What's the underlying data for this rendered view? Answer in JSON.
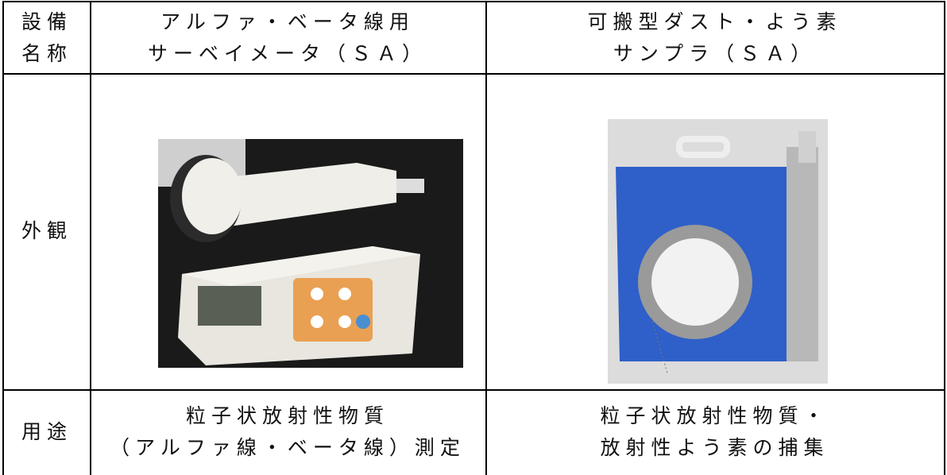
{
  "table": {
    "rows": [
      {
        "label": [
          "設備",
          "名称"
        ],
        "cells": [
          [
            "アルファ・ベータ線用",
            "サーベイメータ（ＳＡ）"
          ],
          [
            "可搬型ダスト・よう素",
            "サンプラ（ＳＡ）"
          ]
        ]
      },
      {
        "label": [
          "外観"
        ]
      },
      {
        "label": [
          "用途"
        ],
        "cells": [
          [
            "粒子状放射性物質",
            "（アルファ線・ベータ線）測定"
          ],
          [
            "粒子状放射性物質・",
            "放射性よう素の捕集"
          ]
        ]
      }
    ]
  }
}
